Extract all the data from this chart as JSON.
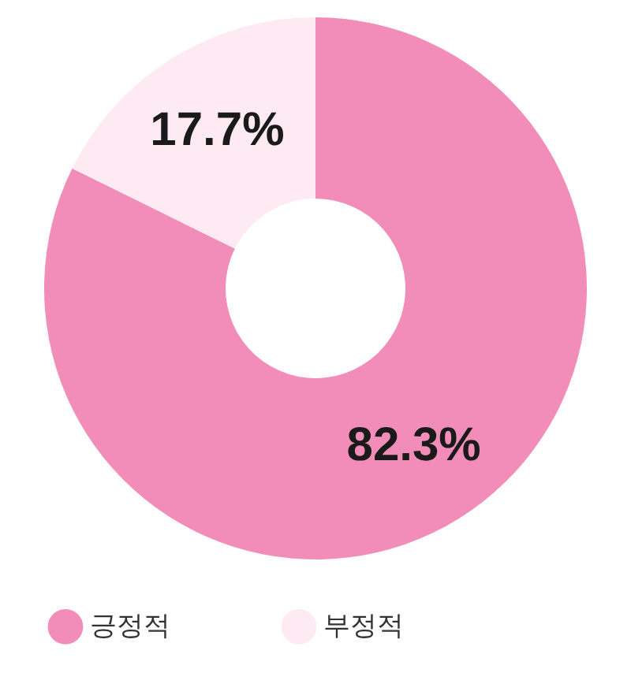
{
  "chart_data": {
    "type": "donut",
    "categories": [
      "긍정적",
      "부정적"
    ],
    "values": [
      82.3,
      17.7
    ],
    "colors": [
      "#f28cb8",
      "#fdeaf2"
    ],
    "value_labels": [
      "82.3%",
      "17.7%"
    ],
    "legend": "bottom"
  }
}
